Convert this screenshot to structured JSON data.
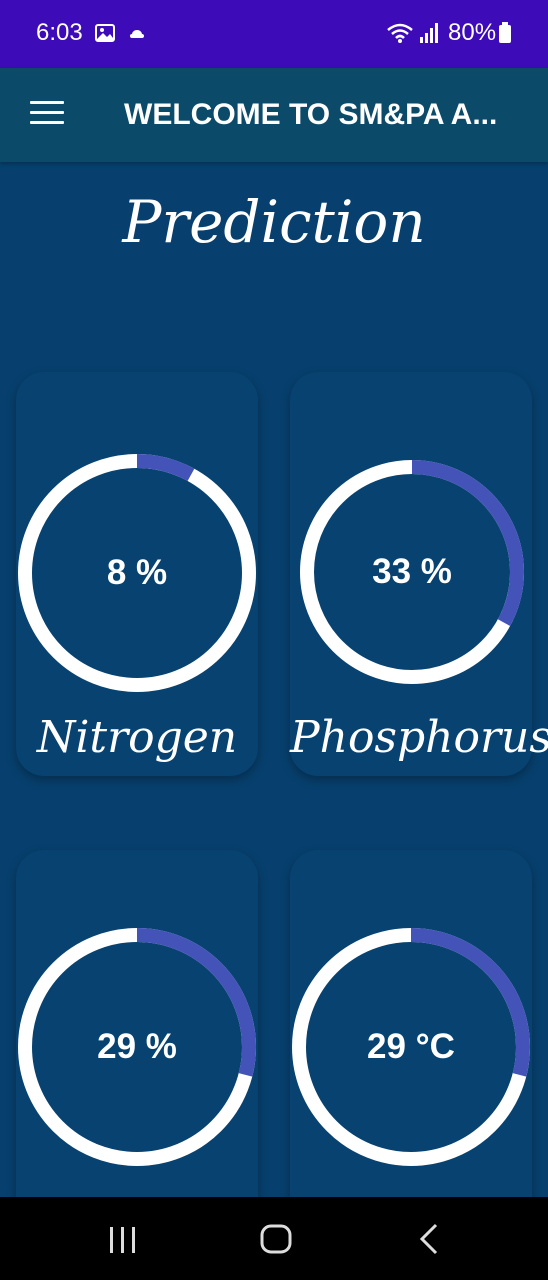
{
  "status_bar": {
    "time": "6:03",
    "battery": "80%",
    "icons": [
      "gallery-icon",
      "cloud-icon",
      "wifi-icon",
      "signal-icon",
      "battery-icon"
    ]
  },
  "app_bar": {
    "title": "WELCOME TO SM&PA A...",
    "menu_icon": "menu-icon"
  },
  "page": {
    "title": "Prediction"
  },
  "gauges": [
    {
      "value_text": "8 %",
      "level": 0.08,
      "label": "Nitrogen"
    },
    {
      "value_text": "33 %",
      "level": 0.33,
      "label": "Phosphorus"
    },
    {
      "value_text": "29 %",
      "level": 0.29,
      "label": ""
    },
    {
      "value_text": "29 °C",
      "level": 0.29,
      "label": ""
    }
  ],
  "colors": {
    "status_bar": "#3d0bb8",
    "app_bar": "#0c4a6a",
    "background": "#07406e",
    "ring_track": "#ffffff",
    "ring_progress": "#4353b8"
  },
  "nav_bar": {
    "icons": [
      "recents-icon",
      "home-icon",
      "back-icon"
    ]
  }
}
